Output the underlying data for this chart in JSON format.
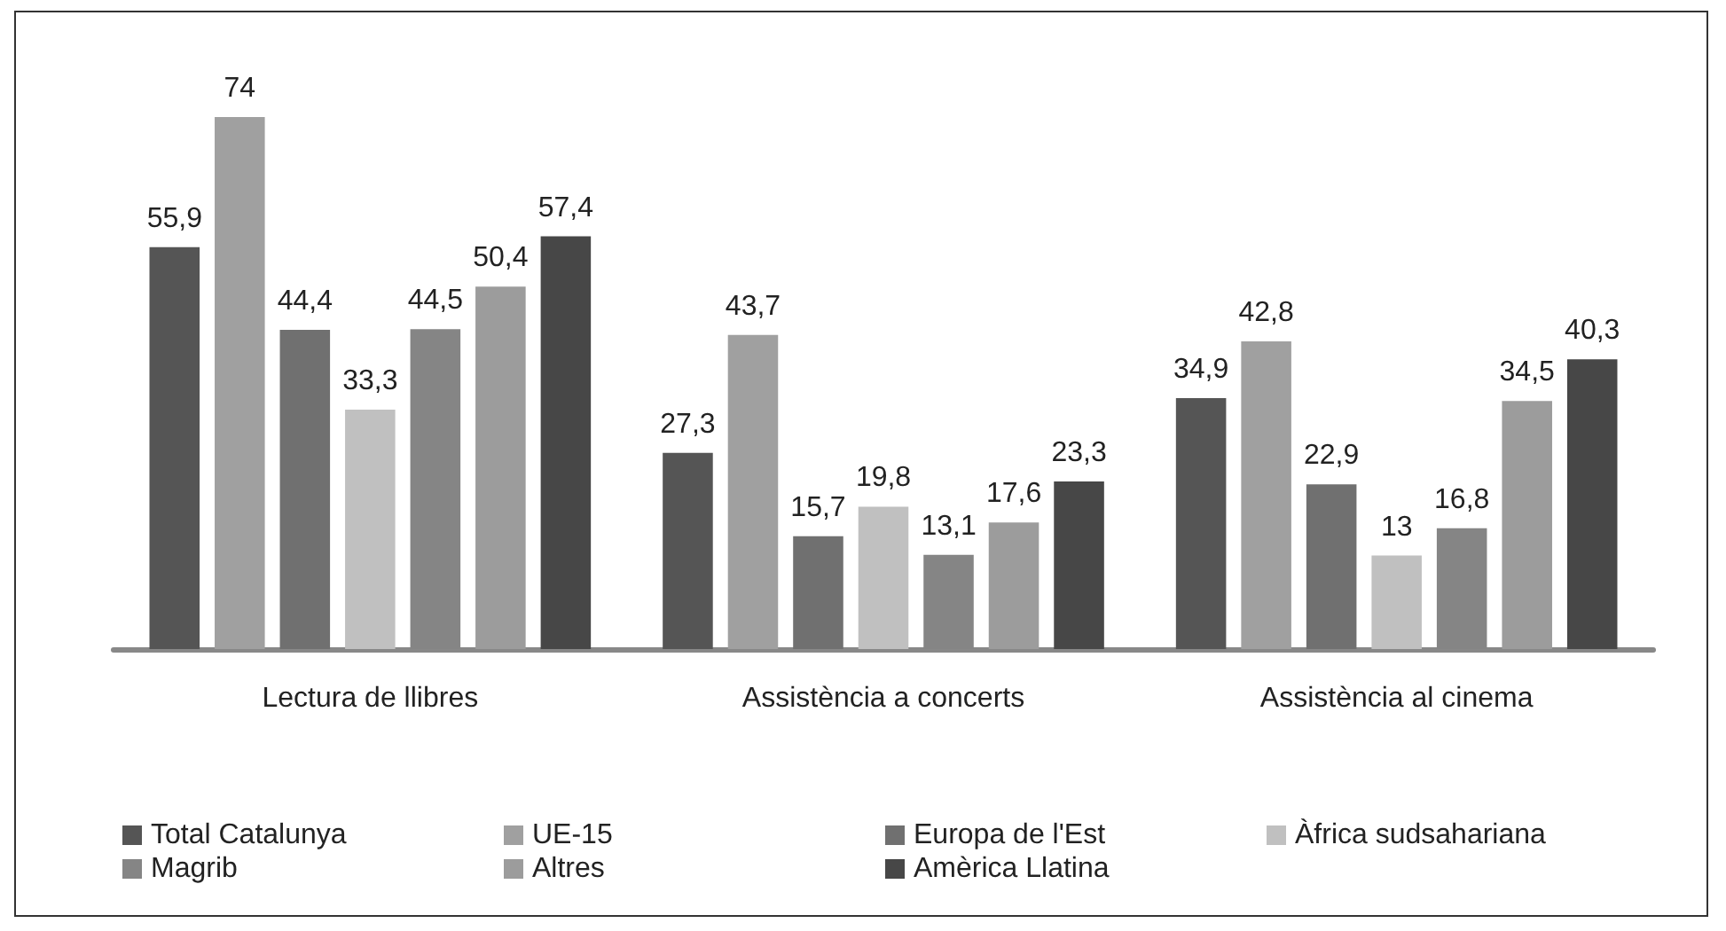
{
  "chart_data": {
    "type": "bar",
    "categories": [
      "Lectura de llibres",
      "Assistència a concerts",
      "Assistència al cinema"
    ],
    "series": [
      {
        "name": "Total Catalunya",
        "color": "#555555",
        "values": [
          55.9,
          27.3,
          34.9
        ],
        "value_labels": [
          "55,9",
          "27,3",
          "34,9"
        ]
      },
      {
        "name": "UE-15",
        "color": "#a0a0a0",
        "values": [
          74,
          43.7,
          42.8
        ],
        "value_labels": [
          "74",
          "43,7",
          "42,8"
        ]
      },
      {
        "name": "Europa de l'Est",
        "color": "#707070",
        "values": [
          44.4,
          15.7,
          22.9
        ],
        "value_labels": [
          "44,4",
          "15,7",
          "22,9"
        ]
      },
      {
        "name": "Àfrica sudsahariana",
        "color": "#c0c0c0",
        "values": [
          33.3,
          19.8,
          13
        ],
        "value_labels": [
          "33,3",
          "19,8",
          "13"
        ]
      },
      {
        "name": "Magrib",
        "color": "#858585",
        "values": [
          44.5,
          13.1,
          16.8
        ],
        "value_labels": [
          "44,5",
          "13,1",
          "16,8"
        ]
      },
      {
        "name": "Altres",
        "color": "#9c9c9c",
        "values": [
          50.4,
          17.6,
          34.5
        ],
        "value_labels": [
          "50,4",
          "17,6",
          "34,5"
        ]
      },
      {
        "name": "Amèrica Llatina",
        "color": "#474747",
        "values": [
          57.4,
          23.3,
          40.3
        ],
        "value_labels": [
          "57,4",
          "23,3",
          "40,3"
        ]
      }
    ],
    "legend": "bottom"
  }
}
